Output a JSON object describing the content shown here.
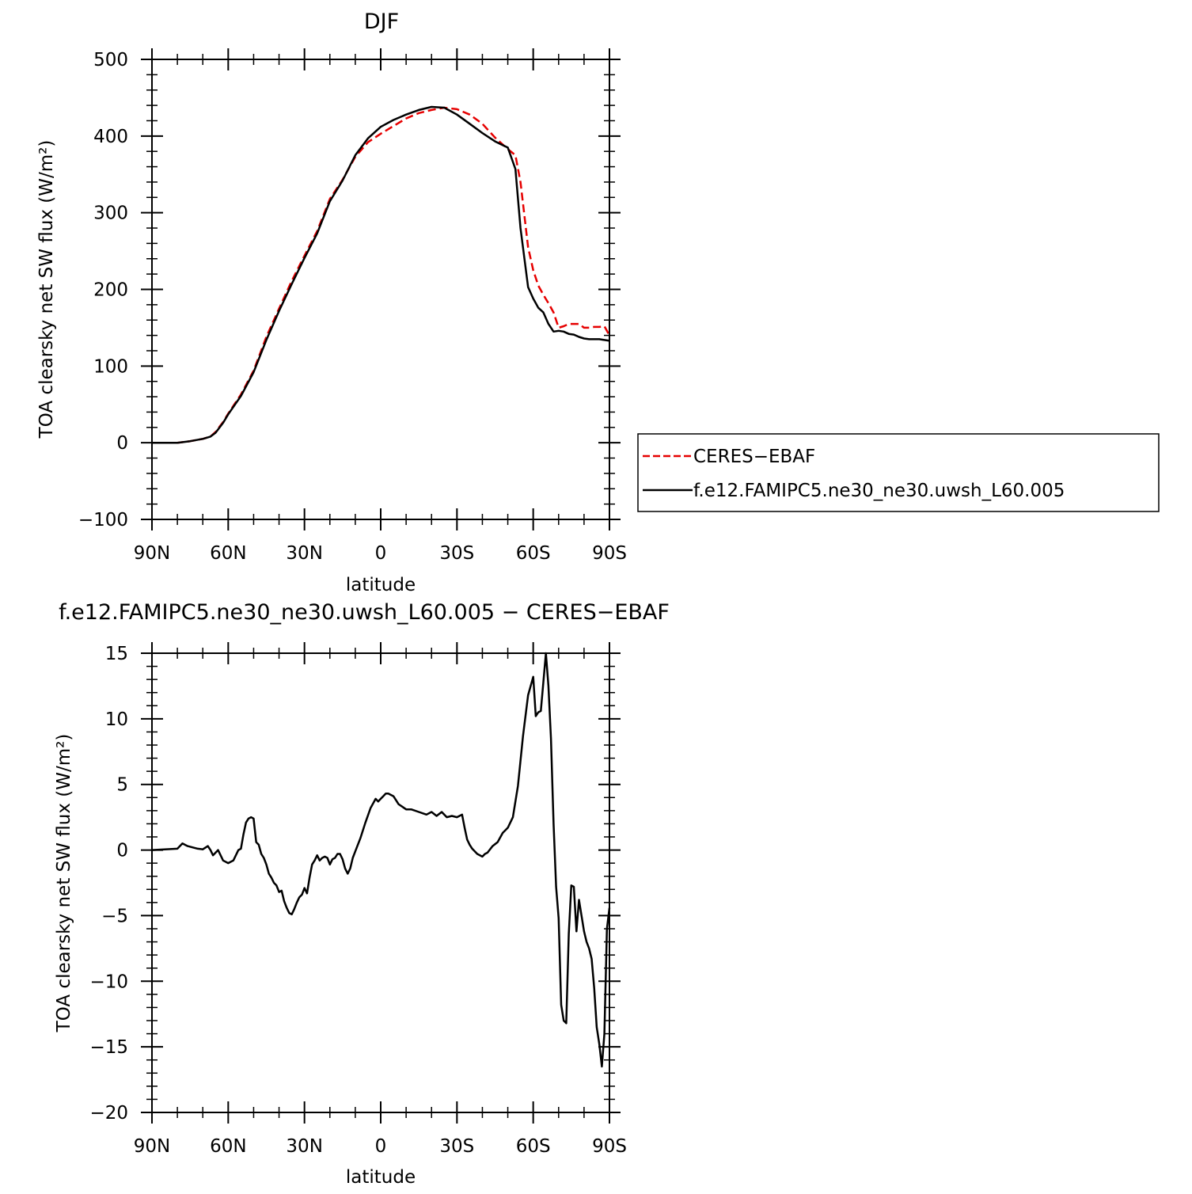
{
  "chart_data": [
    {
      "type": "line",
      "title": "DJF",
      "xlabel": "latitude",
      "ylabel": "TOA clearsky net SW flux (W/m²)",
      "xlim": [
        90,
        -90
      ],
      "ylim": [
        -100,
        500
      ],
      "x_ticks": [
        90,
        60,
        30,
        0,
        -30,
        -60,
        -90
      ],
      "x_tick_labels": [
        "90N",
        "60N",
        "30N",
        "0",
        "30S",
        "60S",
        "90S"
      ],
      "y_ticks": [
        -100,
        0,
        100,
        200,
        300,
        400,
        500
      ],
      "y_tick_labels": [
        "−100",
        "0",
        "100",
        "200",
        "300",
        "400",
        "500"
      ],
      "legend_position": "right",
      "series": [
        {
          "name": "CERES-EBAF",
          "color": "#e60000",
          "dash": "dashed",
          "x": [
            90,
            80,
            75,
            70,
            67,
            65,
            62,
            60,
            55,
            50,
            45,
            40,
            35,
            30,
            25,
            20,
            15,
            10,
            5,
            0,
            -5,
            -10,
            -15,
            -20,
            -25,
            -30,
            -35,
            -40,
            -45,
            -50,
            -53,
            -55,
            -58,
            -60,
            -62,
            -64,
            -66,
            -68,
            -70,
            -72,
            -74,
            -76,
            -78,
            -80,
            -82,
            -84,
            -86,
            -88,
            -90
          ],
          "y": [
            0,
            0,
            2,
            5,
            8,
            14,
            27,
            38,
            63,
            94,
            138,
            175,
            211,
            244,
            276,
            318,
            343,
            373,
            392,
            403,
            413,
            423,
            430,
            434,
            437,
            435,
            428,
            416,
            398,
            383,
            375,
            340,
            255,
            225,
            205,
            193,
            182,
            170,
            150,
            152,
            155,
            155,
            155,
            150,
            150,
            151,
            151,
            152,
            140
          ]
        },
        {
          "name": "f.e12.FAMIPC5.ne30_ne30.uwsh_L60.005",
          "color": "#000000",
          "dash": "solid",
          "x": [
            90,
            80,
            75,
            70,
            67,
            65,
            62,
            60,
            55,
            50,
            45,
            40,
            35,
            30,
            25,
            20,
            15,
            10,
            5,
            0,
            -5,
            -10,
            -15,
            -20,
            -25,
            -30,
            -35,
            -40,
            -45,
            -50,
            -53,
            -55,
            -58,
            -60,
            -62,
            -64,
            -66,
            -68,
            -70,
            -72,
            -74,
            -76,
            -78,
            -80,
            -82,
            -84,
            -86,
            -88,
            -90
          ],
          "y": [
            0,
            0,
            2,
            5,
            8,
            13,
            26,
            37,
            61,
            92,
            134,
            172,
            207,
            241,
            273,
            315,
            342,
            375,
            397,
            412,
            421,
            428,
            434,
            438,
            437,
            428,
            416,
            404,
            393,
            385,
            357,
            280,
            203,
            188,
            176,
            170,
            155,
            145,
            146,
            145,
            142,
            141,
            138,
            136,
            135,
            135,
            135,
            134,
            133
          ]
        }
      ]
    },
    {
      "type": "line",
      "title": "f.e12.FAMIPC5.ne30_ne30.uwsh_L60.005 − CERES−EBAF",
      "xlabel": "latitude",
      "ylabel": "TOA clearsky net SW flux (W/m²)",
      "xlim": [
        90,
        -90
      ],
      "ylim": [
        -20,
        15
      ],
      "x_ticks": [
        90,
        60,
        30,
        0,
        -30,
        -60,
        -90
      ],
      "x_tick_labels": [
        "90N",
        "60N",
        "30N",
        "0",
        "30S",
        "60S",
        "90S"
      ],
      "y_ticks": [
        -20,
        -15,
        -10,
        -5,
        0,
        5,
        10,
        15
      ],
      "y_tick_labels": [
        "−20",
        "−15",
        "−10",
        "−5",
        "0",
        "5",
        "10",
        "15"
      ],
      "series": [
        {
          "color": "#000000",
          "dash": "solid",
          "x": [
            90,
            80,
            78,
            76,
            72,
            70,
            68,
            67,
            66,
            64,
            62,
            60,
            58,
            56,
            55,
            54,
            53,
            52,
            51,
            50,
            49,
            48,
            47,
            46,
            45,
            44,
            43,
            42,
            41,
            40,
            39,
            38,
            37,
            36,
            35,
            34,
            33,
            32,
            31,
            30,
            29,
            28,
            27,
            26,
            25,
            24,
            23,
            22,
            21,
            20,
            19,
            18,
            17,
            16,
            15,
            14,
            13,
            12,
            11,
            10,
            8,
            6,
            4,
            2,
            1,
            0,
            -1,
            -2,
            -3,
            -5,
            -7,
            -10,
            -12,
            -15,
            -18,
            -20,
            -22,
            -24,
            -26,
            -28,
            -30,
            -31,
            -32,
            -33,
            -34,
            -35,
            -36,
            -38,
            -40,
            -41,
            -42,
            -44,
            -46,
            -48,
            -50,
            -52,
            -54,
            -56,
            -58,
            -60,
            -61,
            -62,
            -63,
            -64,
            -65,
            -66,
            -67,
            -68,
            -69,
            -70,
            -71,
            -72,
            -73,
            -74,
            -75,
            -76,
            -77,
            -78,
            -79,
            -80,
            -81,
            -82,
            -83,
            -84,
            -85,
            -86,
            -87,
            -88,
            -89,
            -90
          ],
          "y": [
            0,
            0.1,
            0.5,
            0.3,
            0.1,
            0.05,
            0.3,
            0,
            -0.4,
            0,
            -0.8,
            -1,
            -0.8,
            0,
            0.1,
            1.2,
            2.1,
            2.4,
            2.5,
            2.4,
            0.6,
            0.4,
            -0.3,
            -0.6,
            -1.1,
            -1.8,
            -2.1,
            -2.5,
            -2.7,
            -3.2,
            -3.1,
            -3.9,
            -4.4,
            -4.8,
            -4.9,
            -4.5,
            -4,
            -3.6,
            -3.4,
            -2.9,
            -3.3,
            -2.1,
            -1.1,
            -0.8,
            -0.4,
            -0.8,
            -0.6,
            -0.5,
            -0.6,
            -1.1,
            -0.7,
            -0.6,
            -0.3,
            -0.3,
            -0.7,
            -1.4,
            -1.8,
            -1.4,
            -0.6,
            -0.1,
            0.9,
            2.1,
            3.2,
            3.9,
            3.7,
            3.9,
            4.1,
            4.3,
            4.3,
            4.1,
            3.5,
            3.1,
            3.1,
            2.9,
            2.7,
            2.9,
            2.6,
            2.9,
            2.5,
            2.6,
            2.5,
            2.6,
            2.7,
            1.7,
            0.8,
            0.4,
            0.1,
            -0.3,
            -0.5,
            -0.3,
            -0.2,
            0.3,
            0.6,
            1.3,
            1.7,
            2.5,
            4.9,
            8.7,
            11.8,
            13.2,
            10.2,
            10.5,
            10.6,
            12.8,
            15,
            12.5,
            8.5,
            2,
            -2.8,
            -5.2,
            -11.8,
            -13,
            -13.2,
            -6.4,
            -2.7,
            -2.8,
            -6.2,
            -3.8,
            -5,
            -6.2,
            -7,
            -7.5,
            -8.3,
            -10.5,
            -13.5,
            -14.8,
            -16.5,
            -14,
            -6,
            -4.4
          ]
        }
      ]
    }
  ],
  "legend": {
    "items": [
      {
        "label": "CERES−EBAF"
      },
      {
        "label": "f.e12.FAMIPC5.ne30_ne30.uwsh_L60.005"
      }
    ]
  }
}
